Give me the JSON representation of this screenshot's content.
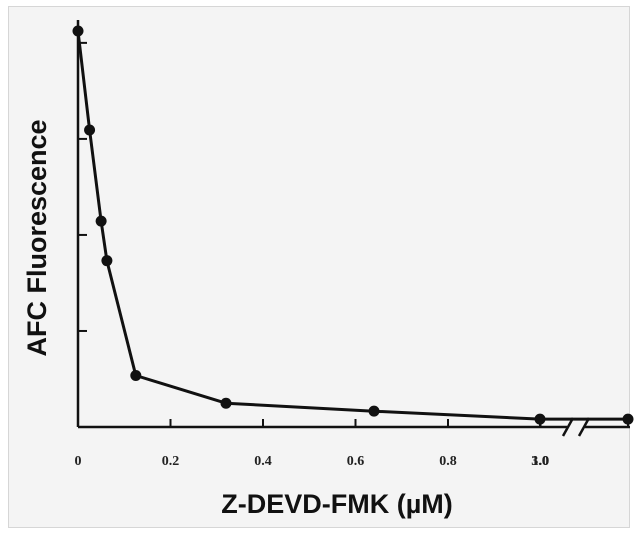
{
  "chart_data": {
    "type": "line",
    "title": "",
    "xlabel": "Z-DEVD-FMK (µM)",
    "ylabel": "AFC Fluorescence",
    "x_tick_labels": [
      "0",
      "0.2",
      "0.4",
      "0.6",
      "0.8",
      "1.0",
      "3.0"
    ],
    "axis_break": "between 1.0 and 3.0",
    "y_ticks_labeled": false,
    "grid": false,
    "legend": "none",
    "colors": {
      "line": "#111111",
      "marker": "#111111",
      "background": "#f4f4f4",
      "axis": "#111111"
    },
    "series": [
      {
        "x": [
          0.0,
          0.025,
          0.05,
          0.0625,
          0.125,
          0.32,
          0.64,
          3.0,
          3.6
        ],
        "y": [
          1.0,
          0.75,
          0.52,
          0.42,
          0.13,
          0.06,
          0.04,
          0.02,
          0.02
        ]
      }
    ]
  }
}
